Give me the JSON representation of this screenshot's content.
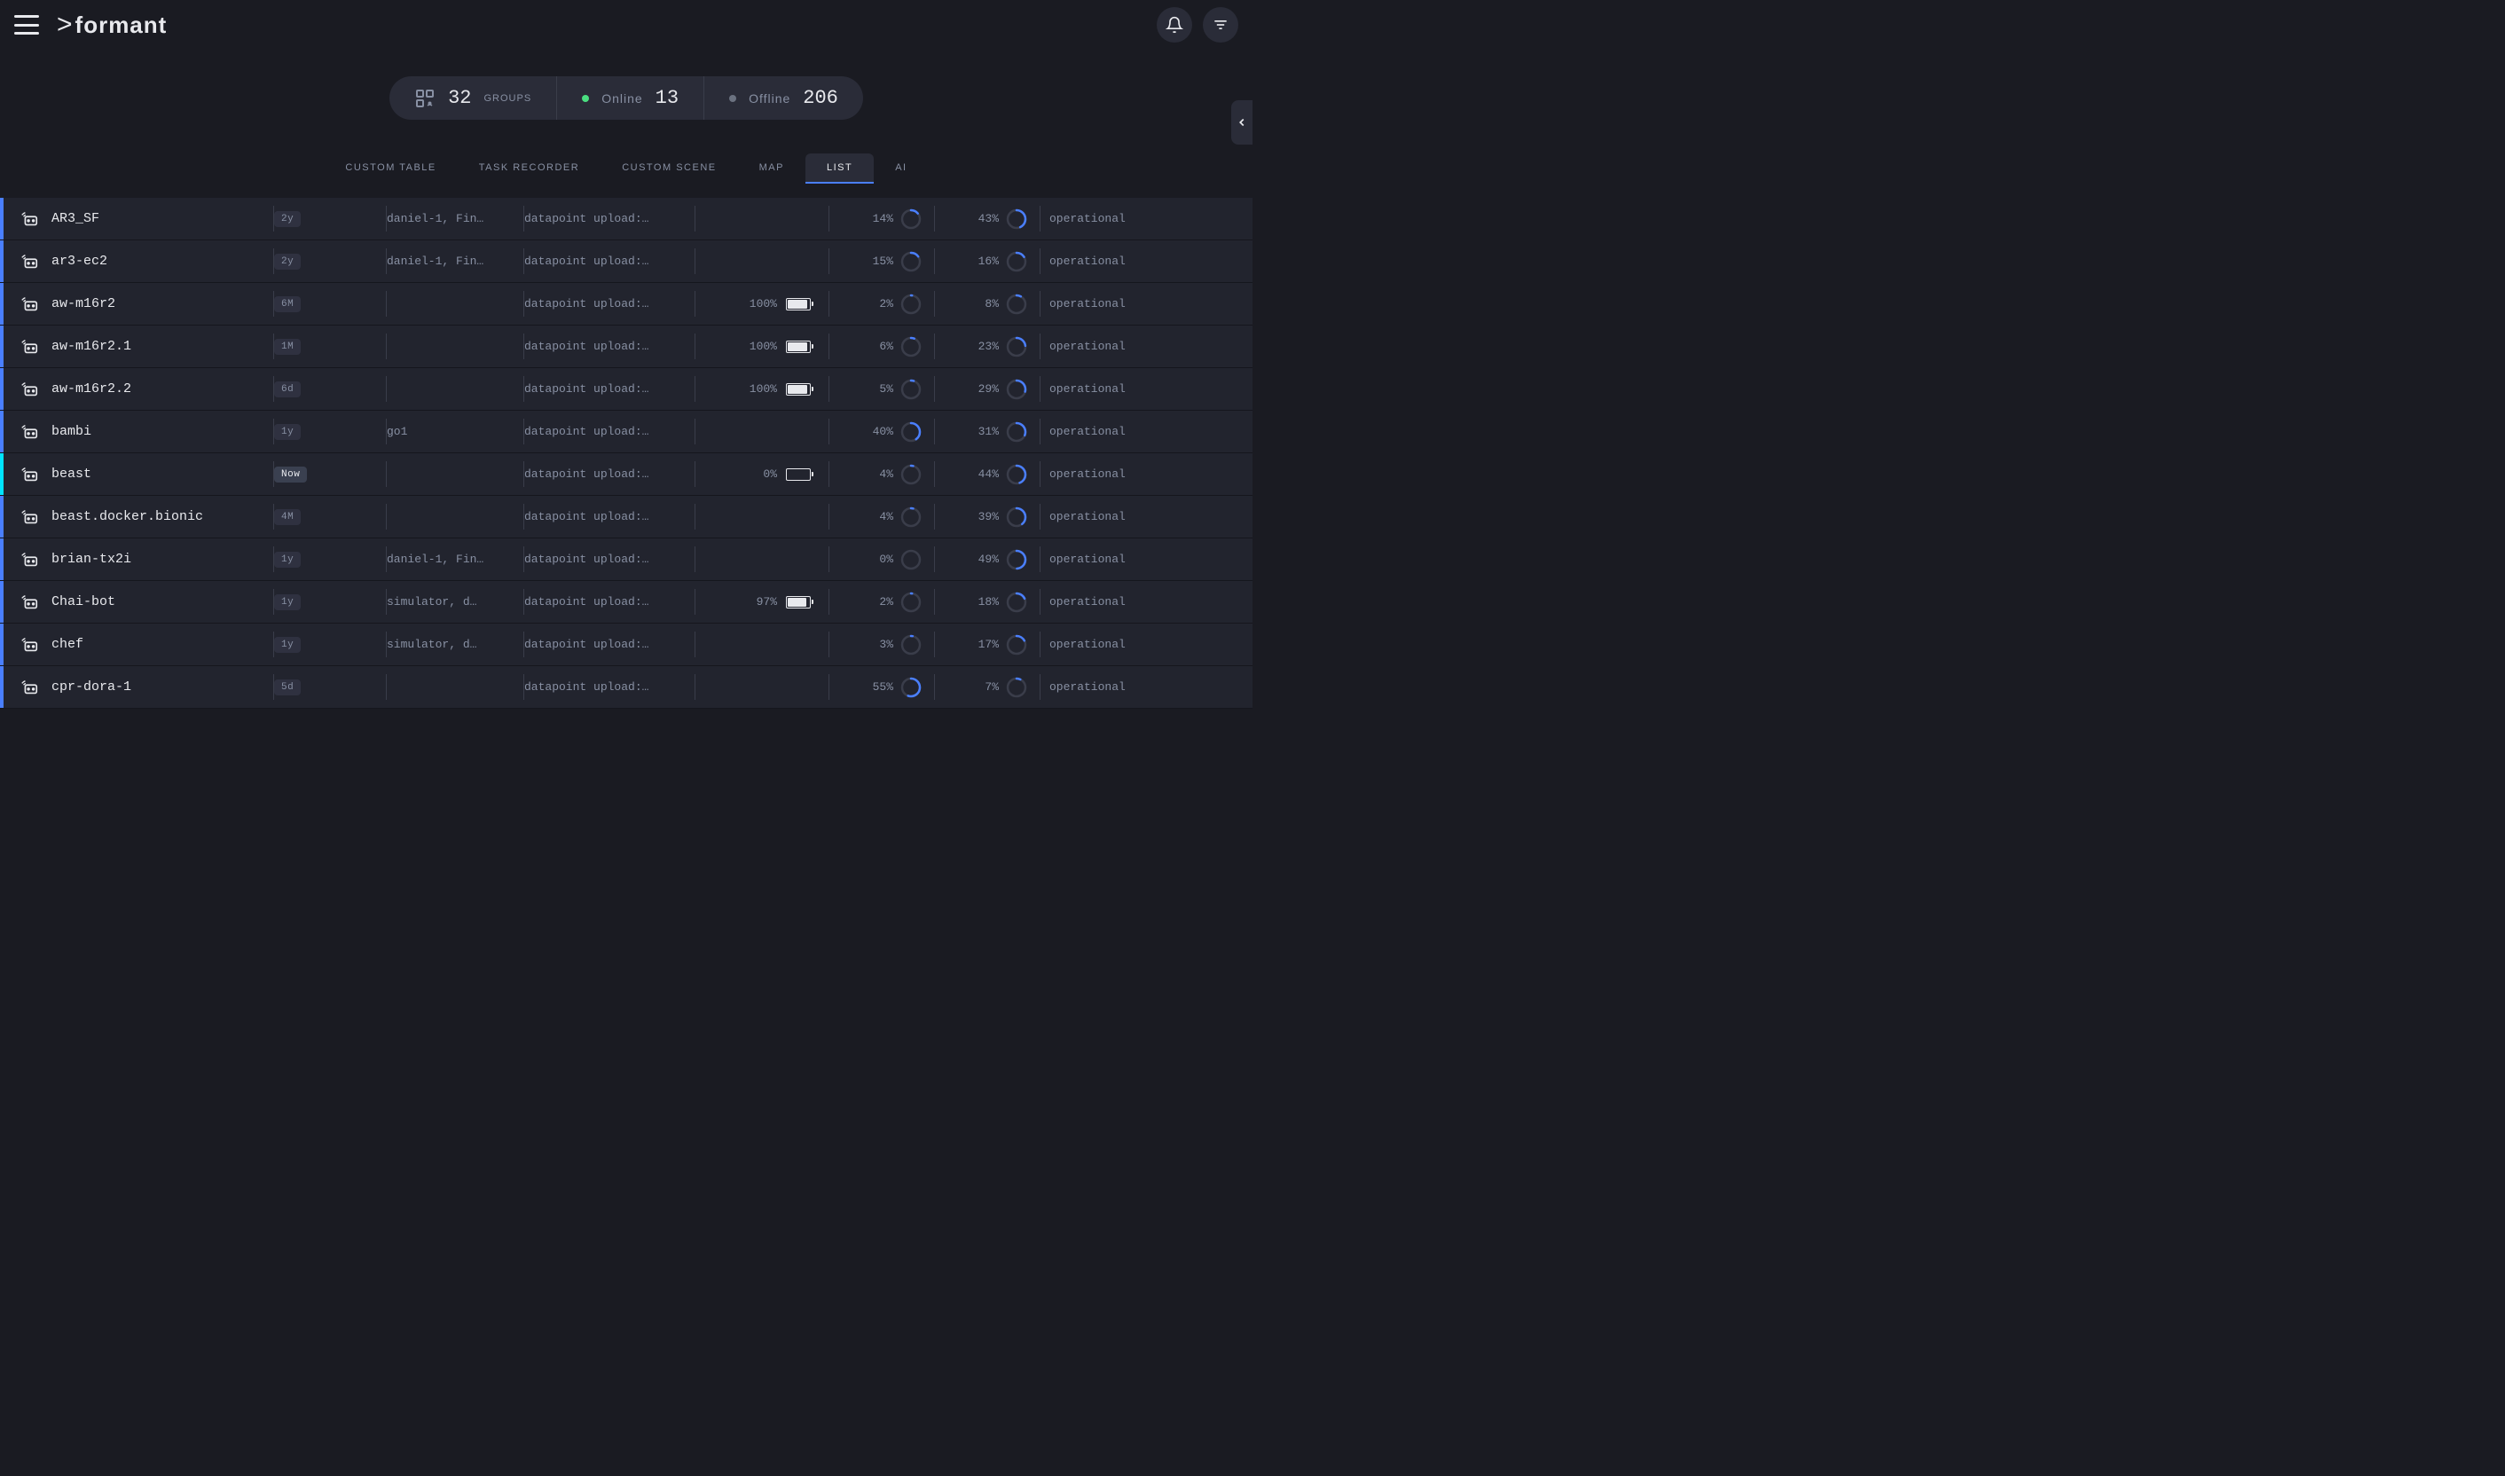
{
  "brand": "formant",
  "stats": {
    "groups_value": "32",
    "groups_label": "GROUPS",
    "online_label": "Online",
    "online_value": "13",
    "offline_label": "Offline",
    "offline_value": "206"
  },
  "tabs": {
    "custom_table": "CUSTOM TABLE",
    "task_recorder": "TASK RECORDER",
    "custom_scene": "CUSTOM SCENE",
    "map": "MAP",
    "list": "LIST",
    "ai": "AI"
  },
  "colors": {
    "bg": "#1a1b22",
    "bg_elevated": "#2a2c38",
    "bg_row": "#22242e",
    "text_primary": "#e8e9ed",
    "text_secondary": "#8890a3",
    "accent_cyan": "#00e5ff",
    "accent_blue": "#4a7fff",
    "online_green": "#4ade80",
    "offline_grey": "#6b7280",
    "border": "#3a3d4a",
    "ring_track": "#3a3d4a"
  },
  "rows": [
    {
      "name": "AR3_SF",
      "age": "2y",
      "age_now": false,
      "tags": "daniel-1, Fin…",
      "upload": "datapoint upload:…",
      "battery": null,
      "cpu": 14,
      "disk": 43,
      "status": "operational",
      "edge": "#4a7fff"
    },
    {
      "name": "ar3-ec2",
      "age": "2y",
      "age_now": false,
      "tags": "daniel-1, Fin…",
      "upload": "datapoint upload:…",
      "battery": null,
      "cpu": 15,
      "disk": 16,
      "status": "operational",
      "edge": "#4a7fff"
    },
    {
      "name": "aw-m16r2",
      "age": "6M",
      "age_now": false,
      "tags": "",
      "upload": "datapoint upload:…",
      "battery": 100,
      "cpu": 2,
      "disk": 8,
      "status": "operational",
      "edge": "#4a7fff"
    },
    {
      "name": "aw-m16r2.1",
      "age": "1M",
      "age_now": false,
      "tags": "",
      "upload": "datapoint upload:…",
      "battery": 100,
      "cpu": 6,
      "disk": 23,
      "status": "operational",
      "edge": "#4a7fff"
    },
    {
      "name": "aw-m16r2.2",
      "age": "6d",
      "age_now": false,
      "tags": "",
      "upload": "datapoint upload:…",
      "battery": 100,
      "cpu": 5,
      "disk": 29,
      "status": "operational",
      "edge": "#4a7fff"
    },
    {
      "name": "bambi",
      "age": "1y",
      "age_now": false,
      "tags": "go1",
      "upload": "datapoint upload:…",
      "battery": null,
      "cpu": 40,
      "disk": 31,
      "status": "operational",
      "edge": "#4a7fff"
    },
    {
      "name": "beast",
      "age": "Now",
      "age_now": true,
      "tags": "",
      "upload": "datapoint upload:…",
      "battery": 0,
      "cpu": 4,
      "disk": 44,
      "status": "operational",
      "edge": "#00e5ff"
    },
    {
      "name": "beast.docker.bionic",
      "age": "4M",
      "age_now": false,
      "tags": "",
      "upload": "datapoint upload:…",
      "battery": null,
      "cpu": 4,
      "disk": 39,
      "status": "operational",
      "edge": "#4a7fff"
    },
    {
      "name": "brian-tx2i",
      "age": "1y",
      "age_now": false,
      "tags": "daniel-1, Fin…",
      "upload": "datapoint upload:…",
      "battery": null,
      "cpu": 0,
      "disk": 49,
      "status": "operational",
      "edge": "#4a7fff"
    },
    {
      "name": "Chai-bot",
      "age": "1y",
      "age_now": false,
      "tags": "simulator, d…",
      "upload": "datapoint upload:…",
      "battery": 97,
      "cpu": 2,
      "disk": 18,
      "status": "operational",
      "edge": "#4a7fff"
    },
    {
      "name": "chef",
      "age": "1y",
      "age_now": false,
      "tags": "simulator, d…",
      "upload": "datapoint upload:…",
      "battery": null,
      "cpu": 3,
      "disk": 17,
      "status": "operational",
      "edge": "#4a7fff"
    },
    {
      "name": "cpr-dora-1",
      "age": "5d",
      "age_now": false,
      "tags": "",
      "upload": "datapoint upload:…",
      "battery": null,
      "cpu": 55,
      "disk": 7,
      "status": "operational",
      "edge": "#4a7fff"
    }
  ]
}
